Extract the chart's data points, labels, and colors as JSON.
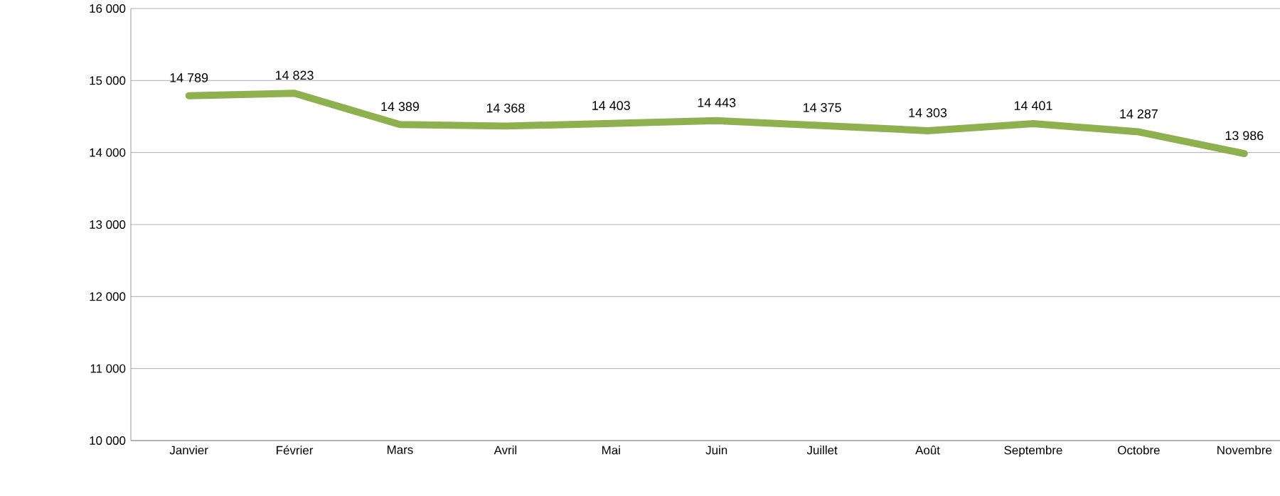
{
  "chart_data": {
    "type": "line",
    "categories": [
      "Janvier",
      "Février",
      "Mars",
      "Avril",
      "Mai",
      "Juin",
      "Juillet",
      "Août",
      "Septembre",
      "Octobre",
      "Novembre"
    ],
    "series": [
      {
        "color": "#8eb04f",
        "values": [
          14789,
          14823,
          14389,
          14368,
          14403,
          14443,
          14375,
          14303,
          14401,
          14287,
          13986
        ],
        "value_labels": [
          "14 789",
          "14 823",
          "14 389",
          "14 368",
          "14 403",
          "14 443",
          "14 375",
          "14 303",
          "14 401",
          "14 287",
          "13 986"
        ]
      }
    ],
    "ylim": [
      10000,
      16000
    ],
    "yticks": [
      {
        "value": 10000,
        "label": "10 000"
      },
      {
        "value": 11000,
        "label": "11 000"
      },
      {
        "value": 12000,
        "label": "12 000"
      },
      {
        "value": 13000,
        "label": "13 000"
      },
      {
        "value": 14000,
        "label": "14 000"
      },
      {
        "value": 15000,
        "label": "15 000"
      },
      {
        "value": 16000,
        "label": "16 000"
      }
    ],
    "grid": "y",
    "marker": "none",
    "line_style": "solid"
  }
}
